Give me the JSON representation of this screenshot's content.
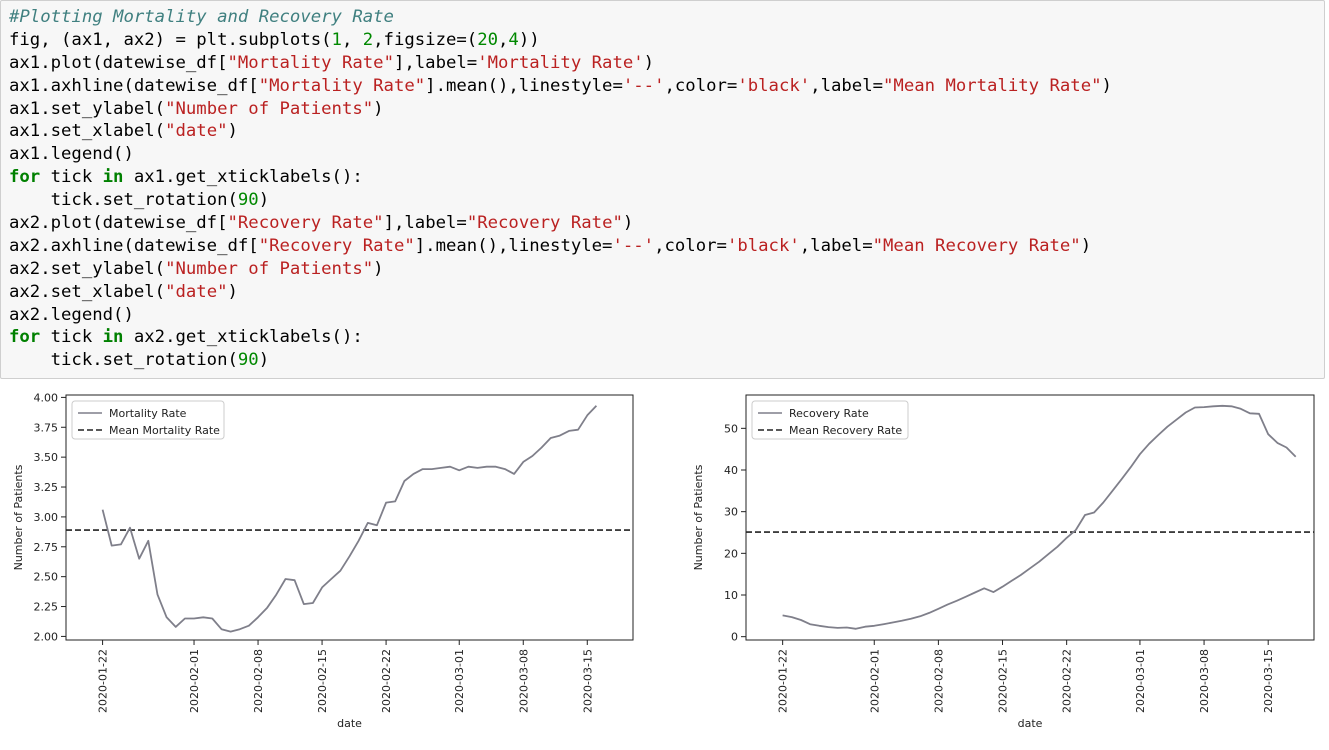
{
  "code_cell": {
    "lines": [
      [
        {
          "t": "#Plotting Mortality and Recovery Rate",
          "c": "comment"
        }
      ],
      [
        {
          "t": "fig, (ax1, ax2) = plt.subplots(",
          "c": ""
        },
        {
          "t": "1",
          "c": "num"
        },
        {
          "t": ", ",
          "c": ""
        },
        {
          "t": "2",
          "c": "num"
        },
        {
          "t": ",figsize=(",
          "c": ""
        },
        {
          "t": "20",
          "c": "num"
        },
        {
          "t": ",",
          "c": ""
        },
        {
          "t": "4",
          "c": "num"
        },
        {
          "t": "))",
          "c": ""
        }
      ],
      [
        {
          "t": "ax1.plot(datewise_df[",
          "c": ""
        },
        {
          "t": "\"Mortality Rate\"",
          "c": "str"
        },
        {
          "t": "],label=",
          "c": ""
        },
        {
          "t": "'Mortality Rate'",
          "c": "str"
        },
        {
          "t": ")",
          "c": ""
        }
      ],
      [
        {
          "t": "ax1.axhline(datewise_df[",
          "c": ""
        },
        {
          "t": "\"Mortality Rate\"",
          "c": "str"
        },
        {
          "t": "].mean(),linestyle=",
          "c": ""
        },
        {
          "t": "'--'",
          "c": "str"
        },
        {
          "t": ",color=",
          "c": ""
        },
        {
          "t": "'black'",
          "c": "str"
        },
        {
          "t": ",label=",
          "c": ""
        },
        {
          "t": "\"Mean Mortality Rate\"",
          "c": "str"
        },
        {
          "t": ")",
          "c": ""
        }
      ],
      [
        {
          "t": "ax1.set_ylabel(",
          "c": ""
        },
        {
          "t": "\"Number of Patients\"",
          "c": "str"
        },
        {
          "t": ")",
          "c": ""
        }
      ],
      [
        {
          "t": "ax1.set_xlabel(",
          "c": ""
        },
        {
          "t": "\"date\"",
          "c": "str"
        },
        {
          "t": ")",
          "c": ""
        }
      ],
      [
        {
          "t": "ax1.legend()",
          "c": ""
        }
      ],
      [
        {
          "t": "for",
          "c": "kw"
        },
        {
          "t": " tick ",
          "c": ""
        },
        {
          "t": "in",
          "c": "kw"
        },
        {
          "t": " ax1.get_xticklabels():",
          "c": ""
        }
      ],
      [
        {
          "t": "    tick.set_rotation(",
          "c": ""
        },
        {
          "t": "90",
          "c": "num"
        },
        {
          "t": ")",
          "c": ""
        }
      ],
      [
        {
          "t": "ax2.plot(datewise_df[",
          "c": ""
        },
        {
          "t": "\"Recovery Rate\"",
          "c": "str"
        },
        {
          "t": "],label=",
          "c": ""
        },
        {
          "t": "\"Recovery Rate\"",
          "c": "str"
        },
        {
          "t": ")",
          "c": ""
        }
      ],
      [
        {
          "t": "ax2.axhline(datewise_df[",
          "c": ""
        },
        {
          "t": "\"Recovery Rate\"",
          "c": "str"
        },
        {
          "t": "].mean(),linestyle=",
          "c": ""
        },
        {
          "t": "'--'",
          "c": "str"
        },
        {
          "t": ",color=",
          "c": ""
        },
        {
          "t": "'black'",
          "c": "str"
        },
        {
          "t": ",label=",
          "c": ""
        },
        {
          "t": "\"Mean Recovery Rate\"",
          "c": "str"
        },
        {
          "t": ")",
          "c": ""
        }
      ],
      [
        {
          "t": "ax2.set_ylabel(",
          "c": ""
        },
        {
          "t": "\"Number of Patients\"",
          "c": "str"
        },
        {
          "t": ")",
          "c": ""
        }
      ],
      [
        {
          "t": "ax2.set_xlabel(",
          "c": ""
        },
        {
          "t": "\"date\"",
          "c": "str"
        },
        {
          "t": ")",
          "c": ""
        }
      ],
      [
        {
          "t": "ax2.legend()",
          "c": ""
        }
      ],
      [
        {
          "t": "for",
          "c": "kw"
        },
        {
          "t": " tick ",
          "c": ""
        },
        {
          "t": "in",
          "c": "kw"
        },
        {
          "t": " ax2.get_xticklabels():",
          "c": ""
        }
      ],
      [
        {
          "t": "    tick.set_rotation(",
          "c": ""
        },
        {
          "t": "90",
          "c": "num"
        },
        {
          "t": ")",
          "c": ""
        }
      ]
    ]
  },
  "chart_data": [
    {
      "type": "line",
      "id": "mortality",
      "xlabel": "date",
      "ylabel": "Number of Patients",
      "ylim": [
        1.97,
        4.02
      ],
      "xlim": [
        "2020-01-18",
        "2020-03-20"
      ],
      "yticks": [
        2.0,
        2.25,
        2.5,
        2.75,
        3.0,
        3.25,
        3.5,
        3.75,
        4.0
      ],
      "ytick_labels": [
        "2.00",
        "2.25",
        "2.50",
        "2.75",
        "3.00",
        "3.25",
        "3.50",
        "3.75",
        "4.00"
      ],
      "xticks": [
        "2020-01-22",
        "2020-02-01",
        "2020-02-08",
        "2020-02-15",
        "2020-02-22",
        "2020-03-01",
        "2020-03-08",
        "2020-03-15"
      ],
      "legend_position": "top-left",
      "series": [
        {
          "name": "Mortality Rate",
          "style": "solid",
          "color": "#7f7f8a",
          "x_start": "2020-01-22",
          "values": [
            3.06,
            2.76,
            2.77,
            2.91,
            2.65,
            2.8,
            2.35,
            2.16,
            2.08,
            2.15,
            2.15,
            2.16,
            2.15,
            2.06,
            2.04,
            2.06,
            2.09,
            2.16,
            2.24,
            2.35,
            2.48,
            2.47,
            2.27,
            2.28,
            2.41,
            2.48,
            2.55,
            2.67,
            2.8,
            2.95,
            2.93,
            3.12,
            3.13,
            3.3,
            3.36,
            3.4,
            3.4,
            3.41,
            3.42,
            3.39,
            3.42,
            3.41,
            3.42,
            3.42,
            3.4,
            3.36,
            3.46,
            3.51,
            3.58,
            3.66,
            3.68,
            3.72,
            3.73,
            3.85,
            3.93
          ]
        }
      ],
      "hlines": [
        {
          "name": "Mean Mortality Rate",
          "style": "dashed",
          "color": "#222222",
          "y": 2.89
        }
      ]
    },
    {
      "type": "line",
      "id": "recovery",
      "xlabel": "date",
      "ylabel": "Number of Patients",
      "ylim": [
        -0.8,
        58
      ],
      "xlim": [
        "2020-01-18",
        "2020-03-20"
      ],
      "yticks": [
        0,
        10,
        20,
        30,
        40,
        50
      ],
      "ytick_labels": [
        "0",
        "10",
        "20",
        "30",
        "40",
        "50"
      ],
      "xticks": [
        "2020-01-22",
        "2020-02-01",
        "2020-02-08",
        "2020-02-15",
        "2020-02-22",
        "2020-03-01",
        "2020-03-08",
        "2020-03-15"
      ],
      "legend_position": "top-left",
      "series": [
        {
          "name": "Recovery Rate",
          "style": "solid",
          "color": "#7f7f8a",
          "x_start": "2020-01-22",
          "values": [
            5.1,
            4.7,
            4.0,
            3.0,
            2.6,
            2.3,
            2.1,
            2.2,
            1.9,
            2.4,
            2.6,
            3.0,
            3.4,
            3.8,
            4.3,
            4.9,
            5.7,
            6.7,
            7.7,
            8.6,
            9.6,
            10.6,
            11.6,
            10.7,
            12.0,
            13.4,
            14.8,
            16.4,
            18.0,
            19.8,
            21.6,
            23.7,
            25.6,
            29.2,
            29.8,
            32.2,
            35.0,
            37.8,
            40.7,
            43.8,
            46.3,
            48.4,
            50.4,
            52.1,
            53.8,
            55.0,
            55.1,
            55.3,
            55.4,
            55.3,
            54.7,
            53.6,
            53.5,
            48.6,
            46.5,
            45.4,
            43.2
          ]
        }
      ],
      "hlines": [
        {
          "name": "Mean Recovery Rate",
          "style": "dashed",
          "color": "#222222",
          "y": 25.1
        }
      ]
    }
  ]
}
